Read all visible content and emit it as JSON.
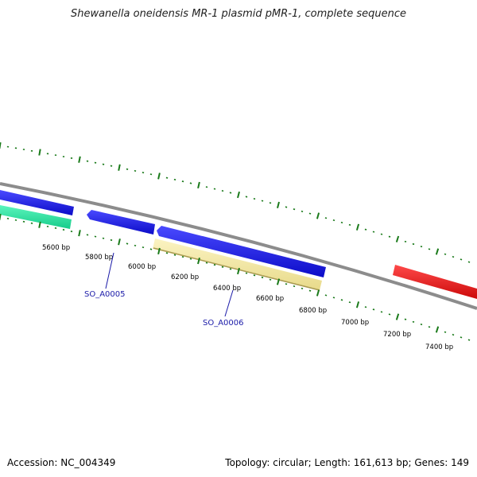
{
  "title": "Shewanella oneidensis MR-1 plasmid pMR-1, complete sequence",
  "footer": {
    "accession": "Accession: NC_004349",
    "summary": "Topology: circular; Length: 161,613 bp; Genes: 149"
  },
  "colors": {
    "backbone": "#8c8c8c",
    "ticks": "#1a7a1a",
    "gene_forward": "#1414e6",
    "gene_red": "#ee1111",
    "gene_teal": "#22e6a0",
    "gene_tan": "#f0e6a0",
    "label": "#1a1aa8"
  },
  "scale_labels": [
    "5600 bp",
    "5800 bp",
    "6000 bp",
    "6200 bp",
    "6400 bp",
    "6600 bp",
    "6800 bp",
    "7000 bp",
    "7200 bp",
    "7400 bp"
  ],
  "gene_labels": [
    {
      "name": "SO_A0005"
    },
    {
      "name": "SO_A0006"
    }
  ]
}
